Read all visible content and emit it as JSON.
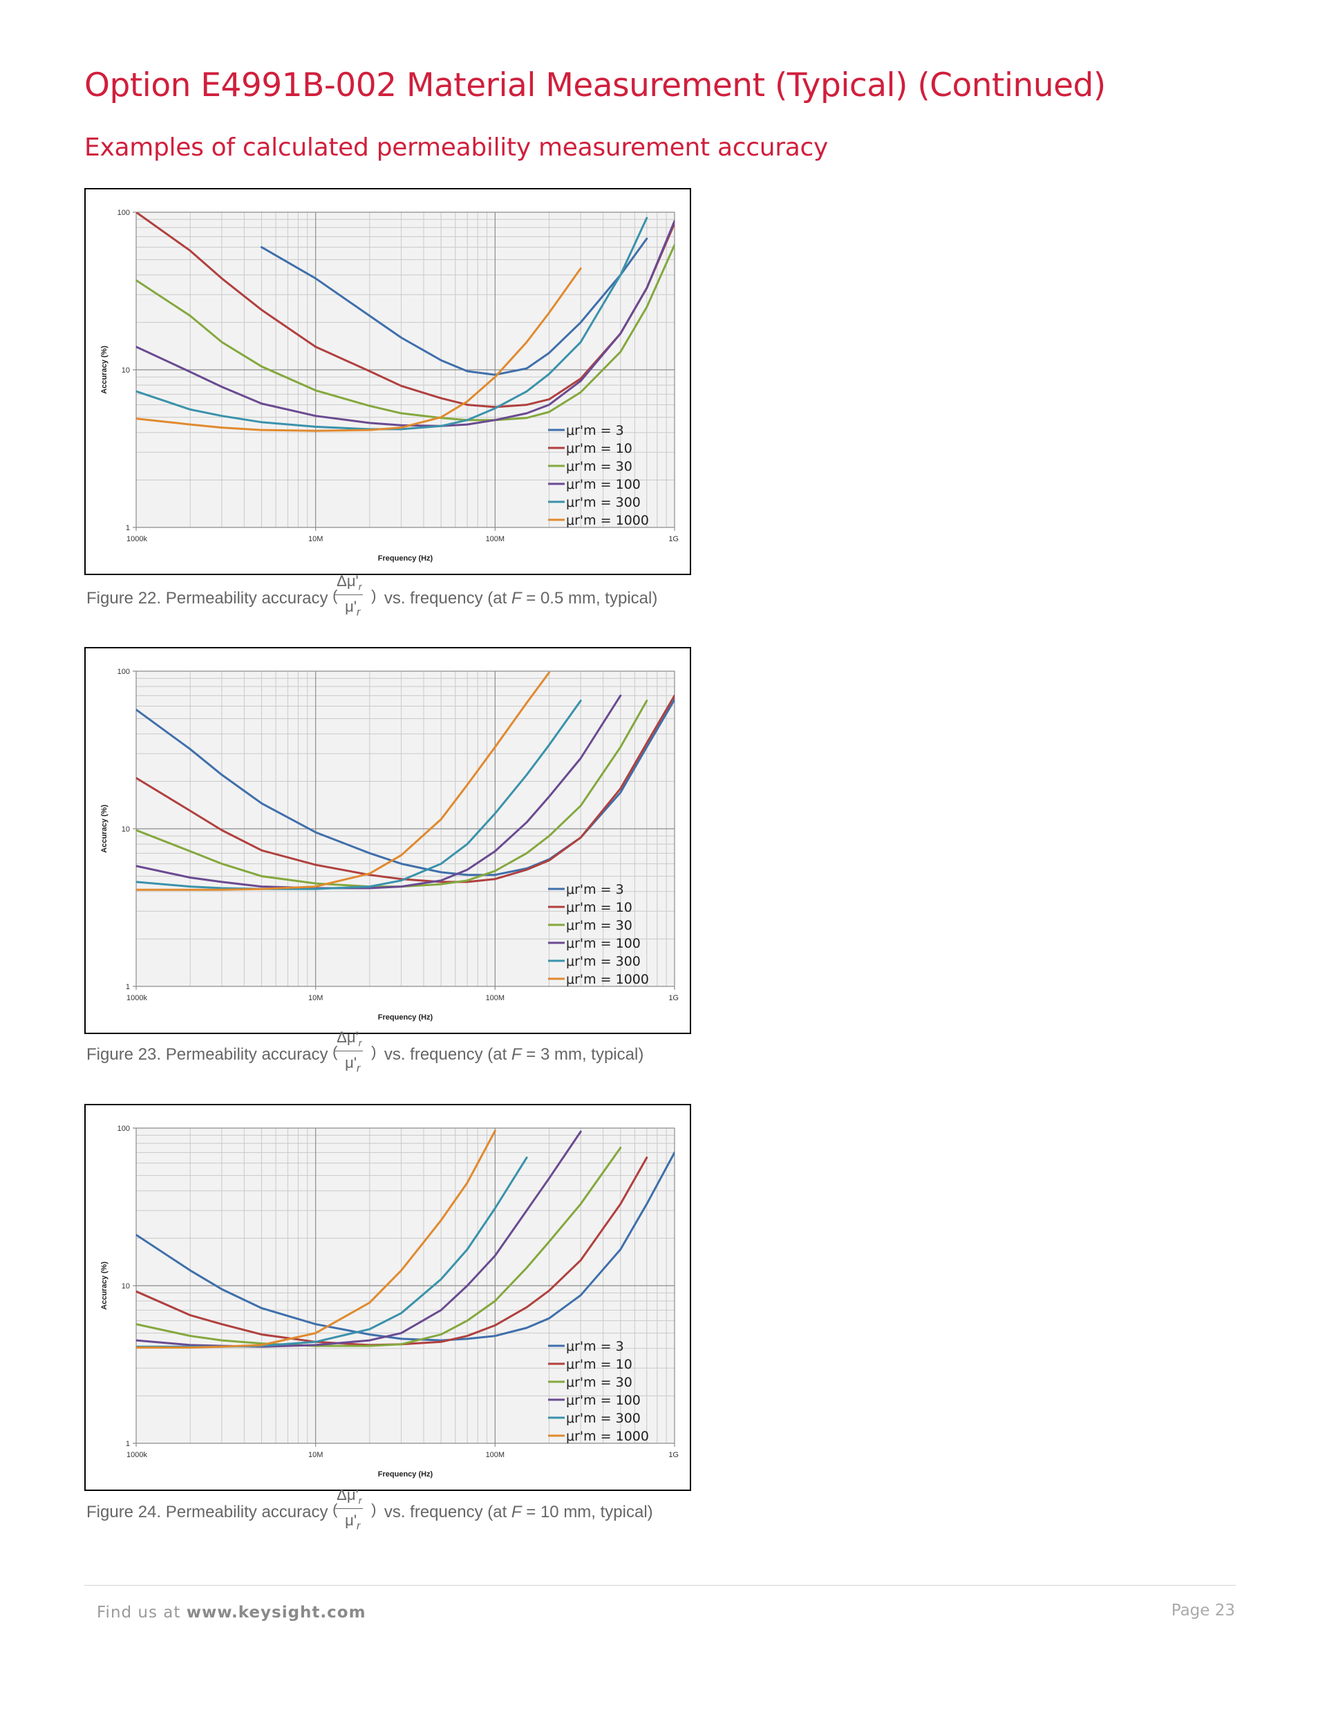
{
  "page": {
    "title": "Option E4991B-002 Material Measurement (Typical) (Continued)",
    "subtitle": "Examples of calculated permeability measurement accuracy",
    "footer_prefix": "Find us at",
    "footer_link": "www.keysight.com",
    "page_number": "Page 23"
  },
  "figures": [
    {
      "caption_prefix": "Figure 22. Permeability accuracy",
      "caption_suffix": "vs. frequency (at",
      "caption_var": "F",
      "caption_end": "= 0.5 mm, typical)"
    },
    {
      "caption_prefix": "Figure 23. Permeability accuracy",
      "caption_suffix": "vs. frequency (at",
      "caption_var": "F",
      "caption_end": "= 3 mm, typical)"
    },
    {
      "caption_prefix": "Figure 24. Permeability accuracy",
      "caption_suffix": "vs. frequency (at",
      "caption_var": "F",
      "caption_end": "= 10 mm, typical)"
    }
  ],
  "caption_formula": {
    "numerator": "Δμ'",
    "numerator_sub": "r",
    "denominator": "μ'",
    "denominator_sub": "r"
  },
  "chart_data": [
    {
      "type": "line",
      "xlabel": "Frequency (Hz)",
      "ylabel": "Accuracy (%)",
      "x_scale": "log",
      "y_scale": "log",
      "xlim": [
        1000000,
        1000000000
      ],
      "ylim": [
        1,
        100
      ],
      "x_ticks": [
        1000000,
        10000000,
        100000000,
        1000000000
      ],
      "x_tick_labels": [
        "1000k",
        "10M",
        "100M",
        "1G"
      ],
      "y_ticks": [
        1,
        10,
        100
      ],
      "y_tick_labels": [
        "1",
        "10",
        "100"
      ],
      "grid": true,
      "legend_position": "bottom-right",
      "x": [
        1000000,
        2000000,
        3000000,
        5000000,
        10000000,
        20000000,
        30000000,
        50000000,
        70000000,
        100000000,
        150000000,
        200000000,
        300000000,
        500000000,
        700000000,
        1000000000
      ],
      "series": [
        {
          "name": "μr'm = 3",
          "color": "#3f6fab",
          "values": [
            null,
            null,
            null,
            60,
            38,
            22,
            16,
            11.5,
            9.8,
            9.3,
            10.2,
            12.8,
            20,
            40,
            68,
            null
          ]
        },
        {
          "name": "μr'm = 10",
          "color": "#b0403e",
          "values": [
            100,
            57,
            38,
            24,
            14,
            9.8,
            7.9,
            6.6,
            6.0,
            5.8,
            6.0,
            6.5,
            8.8,
            17,
            33,
            85
          ]
        },
        {
          "name": "μr'm = 30",
          "color": "#84a83d",
          "values": [
            37,
            22,
            15,
            10.5,
            7.4,
            5.9,
            5.3,
            4.95,
            4.8,
            4.8,
            4.95,
            5.4,
            7.2,
            13,
            25,
            62
          ]
        },
        {
          "name": "μr'm = 100",
          "color": "#6a4a91",
          "values": [
            14,
            9.7,
            7.8,
            6.1,
            5.1,
            4.6,
            4.45,
            4.4,
            4.5,
            4.8,
            5.3,
            6.0,
            8.5,
            17,
            33,
            88
          ]
        },
        {
          "name": "μr'm = 300",
          "color": "#3a92ab",
          "values": [
            7.3,
            5.6,
            5.1,
            4.65,
            4.35,
            4.2,
            4.2,
            4.4,
            4.8,
            5.7,
            7.3,
            9.4,
            15,
            40,
            92,
            null
          ]
        },
        {
          "name": "μr'm = 1000",
          "color": "#e08a2f",
          "values": [
            4.9,
            4.5,
            4.3,
            4.15,
            4.1,
            4.15,
            4.3,
            5.0,
            6.3,
            9.0,
            15,
            23,
            44,
            null,
            null,
            null
          ]
        }
      ]
    },
    {
      "type": "line",
      "xlabel": "Frequency (Hz)",
      "ylabel": "Accuracy (%)",
      "x_scale": "log",
      "y_scale": "log",
      "xlim": [
        1000000,
        1000000000
      ],
      "ylim": [
        1,
        100
      ],
      "x_ticks": [
        1000000,
        10000000,
        100000000,
        1000000000
      ],
      "x_tick_labels": [
        "1000k",
        "10M",
        "100M",
        "1G"
      ],
      "y_ticks": [
        1,
        10,
        100
      ],
      "y_tick_labels": [
        "1",
        "10",
        "100"
      ],
      "grid": true,
      "legend_position": "bottom-right",
      "x": [
        1000000,
        2000000,
        3000000,
        5000000,
        10000000,
        20000000,
        30000000,
        50000000,
        70000000,
        100000000,
        150000000,
        200000000,
        300000000,
        500000000,
        700000000,
        1000000000
      ],
      "series": [
        {
          "name": "μr'm = 3",
          "color": "#3f6fab",
          "values": [
            57,
            32,
            22,
            14.5,
            9.5,
            7.0,
            6.0,
            5.3,
            5.1,
            5.1,
            5.6,
            6.4,
            8.8,
            17,
            33,
            66
          ]
        },
        {
          "name": "μr'm = 10",
          "color": "#b0403e",
          "values": [
            21,
            13,
            9.8,
            7.3,
            5.9,
            5.1,
            4.8,
            4.6,
            4.6,
            4.8,
            5.5,
            6.3,
            8.8,
            18,
            35,
            70
          ]
        },
        {
          "name": "μr'm = 30",
          "color": "#84a83d",
          "values": [
            9.8,
            7.2,
            6.0,
            5.0,
            4.5,
            4.3,
            4.3,
            4.45,
            4.7,
            5.4,
            7.0,
            9.0,
            14,
            33,
            65,
            null
          ]
        },
        {
          "name": "μr'm = 100",
          "color": "#6a4a91",
          "values": [
            5.8,
            4.9,
            4.6,
            4.3,
            4.2,
            4.2,
            4.3,
            4.7,
            5.5,
            7.2,
            11,
            16,
            28,
            70,
            null,
            null
          ]
        },
        {
          "name": "μr'm = 300",
          "color": "#3a92ab",
          "values": [
            4.6,
            4.3,
            4.2,
            4.15,
            4.15,
            4.3,
            4.7,
            6.0,
            8.0,
            12.5,
            22,
            34,
            65,
            null,
            null,
            null
          ]
        },
        {
          "name": "μr'm = 1000",
          "color": "#e08a2f",
          "values": [
            4.1,
            4.1,
            4.1,
            4.15,
            4.3,
            5.2,
            6.8,
            11.5,
            19,
            33,
            63,
            98,
            null,
            null,
            null,
            null
          ]
        }
      ]
    },
    {
      "type": "line",
      "xlabel": "Frequency (Hz)",
      "ylabel": "Accuracy (%)",
      "x_scale": "log",
      "y_scale": "log",
      "xlim": [
        1000000,
        1000000000
      ],
      "ylim": [
        1,
        100
      ],
      "x_ticks": [
        1000000,
        10000000,
        100000000,
        1000000000
      ],
      "x_tick_labels": [
        "1000k",
        "10M",
        "100M",
        "1G"
      ],
      "y_ticks": [
        1,
        10,
        100
      ],
      "y_tick_labels": [
        "1",
        "10",
        "100"
      ],
      "grid": true,
      "legend_position": "bottom-right",
      "x": [
        1000000,
        2000000,
        3000000,
        5000000,
        10000000,
        20000000,
        30000000,
        50000000,
        70000000,
        100000000,
        150000000,
        200000000,
        300000000,
        500000000,
        700000000,
        1000000000
      ],
      "series": [
        {
          "name": "μr'm = 3",
          "color": "#3f6fab",
          "values": [
            21,
            12.5,
            9.5,
            7.2,
            5.7,
            4.9,
            4.6,
            4.5,
            4.6,
            4.8,
            5.4,
            6.2,
            8.7,
            17,
            33,
            70
          ]
        },
        {
          "name": "μr'm = 10",
          "color": "#b0403e",
          "values": [
            9.2,
            6.5,
            5.7,
            4.9,
            4.4,
            4.2,
            4.25,
            4.4,
            4.8,
            5.6,
            7.3,
            9.3,
            14.5,
            33,
            65,
            null
          ]
        },
        {
          "name": "μr'm = 30",
          "color": "#84a83d",
          "values": [
            5.7,
            4.8,
            4.5,
            4.3,
            4.15,
            4.15,
            4.25,
            4.9,
            6.0,
            8.0,
            13,
            19,
            33,
            75,
            null,
            null
          ]
        },
        {
          "name": "μr'm = 100",
          "color": "#6a4a91",
          "values": [
            4.5,
            4.2,
            4.15,
            4.1,
            4.2,
            4.5,
            5.0,
            7.0,
            10,
            15.5,
            30,
            48,
            95,
            null,
            null,
            null
          ]
        },
        {
          "name": "μr'm = 300",
          "color": "#3a92ab",
          "values": [
            4.1,
            4.1,
            4.1,
            4.15,
            4.4,
            5.3,
            6.7,
            11,
            17,
            31,
            65,
            null,
            null,
            null,
            null,
            null
          ]
        },
        {
          "name": "μr'm = 1000",
          "color": "#e08a2f",
          "values": [
            4.05,
            4.05,
            4.1,
            4.2,
            5.0,
            7.8,
            12.5,
            26,
            45,
            96,
            null,
            null,
            null,
            null,
            null,
            null
          ]
        }
      ]
    }
  ]
}
